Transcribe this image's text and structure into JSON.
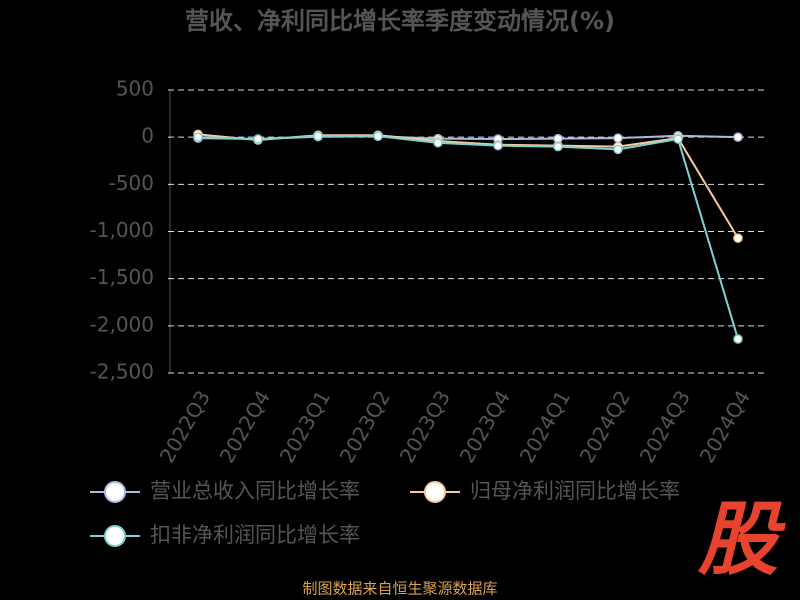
{
  "chart_data": {
    "type": "line",
    "title": "营收、净利同比增长率季度变动情况(%)",
    "categories": [
      "2022Q3",
      "2022Q4",
      "2023Q1",
      "2023Q2",
      "2023Q3",
      "2023Q4",
      "2024Q1",
      "2024Q2",
      "2024Q3",
      "2024Q4"
    ],
    "series": [
      {
        "name": "营业总收入同比增长率",
        "color": "#a9bcdc",
        "values": [
          -10,
          -20,
          5,
          10,
          -15,
          -20,
          -15,
          -10,
          15,
          0
        ]
      },
      {
        "name": "归母净利润同比增长率",
        "color": "#f6cc9c",
        "values": [
          30,
          -30,
          20,
          20,
          -40,
          -80,
          -90,
          -100,
          -10,
          -1070
        ]
      },
      {
        "name": "扣非净利润同比增长率",
        "color": "#80d2d2",
        "values": [
          0,
          -20,
          10,
          10,
          -60,
          -90,
          -100,
          -130,
          -20,
          -2140
        ]
      }
    ],
    "ylim": [
      -2500,
      500
    ],
    "yticks": [
      {
        "value": -2500,
        "label": "-2,500"
      },
      {
        "value": -2000,
        "label": "-2,000"
      },
      {
        "value": -1500,
        "label": "-1,500"
      },
      {
        "value": -1000,
        "label": "-1,000"
      },
      -500,
      0,
      500
    ],
    "grid": true
  },
  "source": "制图数据来自恒生聚源数据库",
  "logo": "股"
}
